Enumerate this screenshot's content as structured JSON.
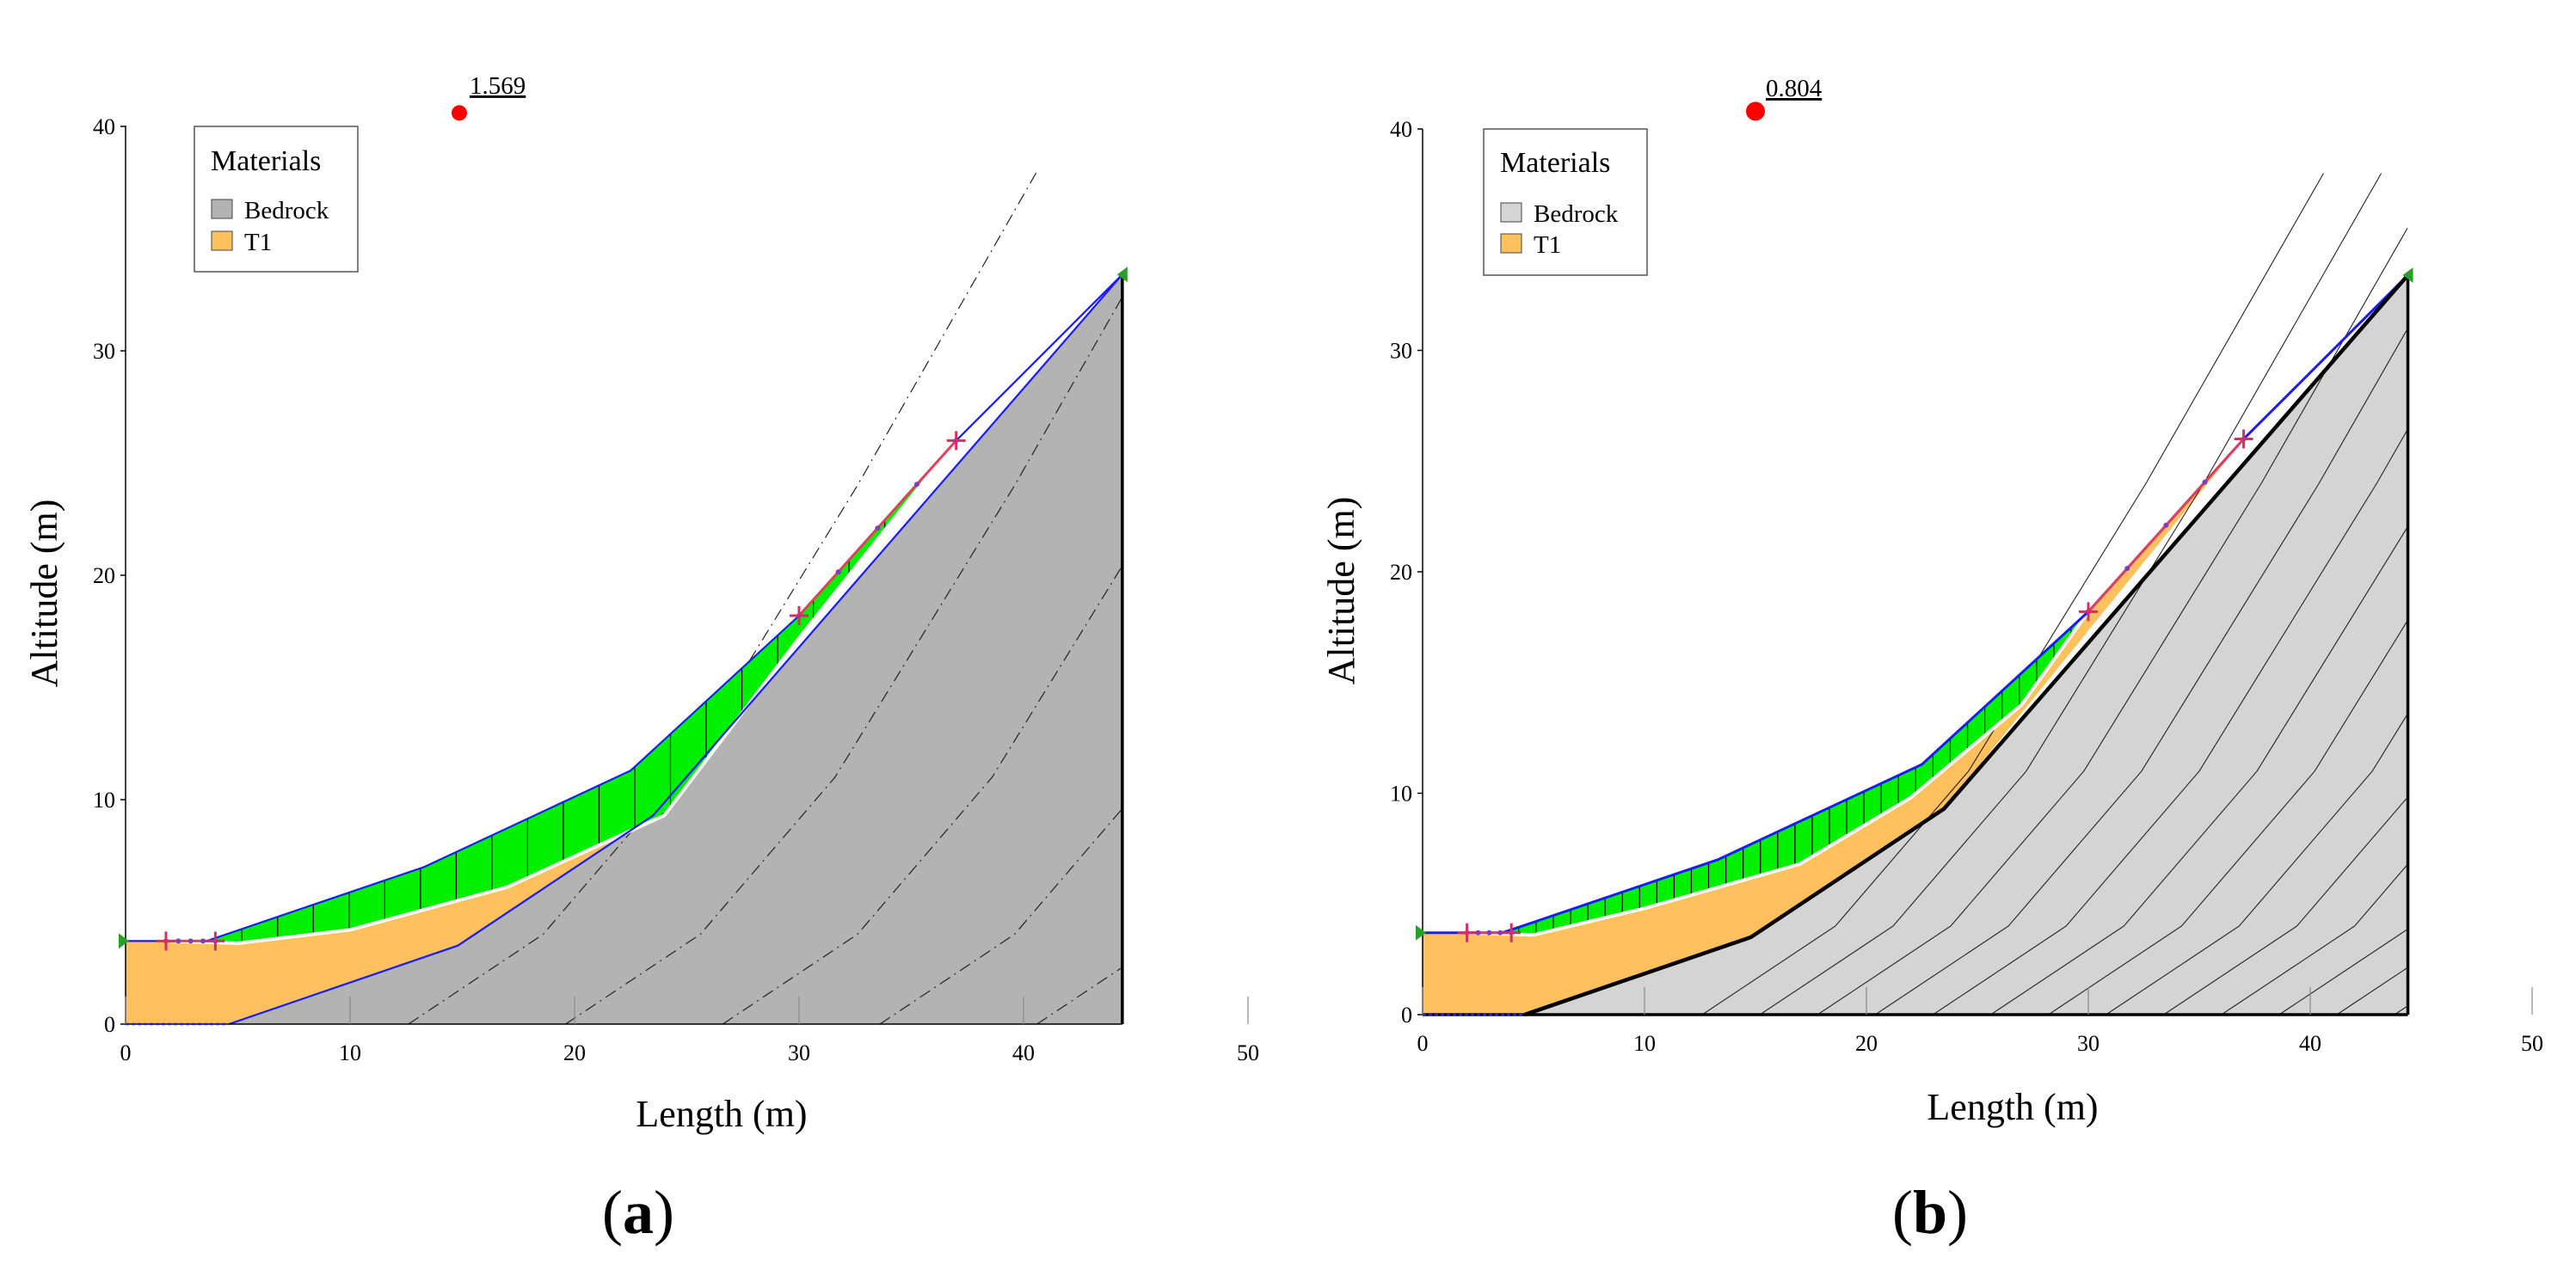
{
  "panels": [
    {
      "id": "a",
      "label_open": "(",
      "label_letter": "a",
      "label_close": ")",
      "factor_of_safety": "1.569",
      "legend": {
        "title": "Materials",
        "items": [
          {
            "label": "Bedrock",
            "color": "#b3b3b3"
          },
          {
            "label": "T1",
            "color": "#ffc05e"
          }
        ]
      }
    },
    {
      "id": "b",
      "label_open": "(",
      "label_letter": "b",
      "label_close": ")",
      "factor_of_safety": "0.804",
      "legend": {
        "title": "Materials",
        "items": [
          {
            "label": "Bedrock",
            "color": "#d4d4d4"
          },
          {
            "label": "T1",
            "color": "#ffc05e"
          }
        ]
      }
    }
  ],
  "chart_data": [
    {
      "type": "line",
      "panel": "a",
      "xlabel": "Length (m)",
      "ylabel": "Altitude (m)",
      "xlim": [
        0,
        50
      ],
      "ylim": [
        0,
        40
      ],
      "x_ticks": [
        0,
        10,
        20,
        30,
        40,
        50
      ],
      "y_ticks": [
        0,
        10,
        20,
        30,
        40
      ],
      "factor_of_safety_marker": {
        "x": 15,
        "y": 40.6,
        "value": "1.569"
      },
      "series": [
        {
          "name": "Bedrock",
          "fill": "#b3b3b3",
          "x": [
            4.6,
            14.8,
            23.5,
            44.4,
            44.4
          ],
          "y": [
            0,
            3.5,
            9.3,
            33.4,
            0
          ]
        },
        {
          "name": "T1",
          "fill": "#ffc05e",
          "x": [
            0,
            0,
            2,
            5,
            10,
            17,
            24,
            30,
            37,
            23.5,
            14.8,
            4.6
          ],
          "y": [
            0,
            3.7,
            3.7,
            3.6,
            4.2,
            6.1,
            9.3,
            17.2,
            26,
            9.3,
            3.5,
            0
          ]
        },
        {
          "x": [
            3.6,
            13.3,
            22.5,
            30,
            37
          ],
          "y": [
            3.7,
            7.0,
            11.3,
            18.2,
            26
          ]
        },
        {
          "x": [
            2,
            5,
            10,
            17,
            24,
            30,
            37
          ],
          "y": [
            3.7,
            3.6,
            4.2,
            6.1,
            9.3,
            17.2,
            26
          ]
        }
      ],
      "slip_surface_endpoints": [
        {
          "x": 1.8,
          "y": 3.7
        },
        {
          "x": 4.0,
          "y": 3.7
        },
        {
          "x": 30.0,
          "y": 18.2
        },
        {
          "x": 37.0,
          "y": 26.0
        }
      ]
    },
    {
      "type": "line",
      "panel": "b",
      "xlabel": "Length (m)",
      "ylabel": "Altitude (m)",
      "xlim": [
        0,
        50
      ],
      "ylim": [
        0,
        40
      ],
      "x_ticks": [
        0,
        10,
        20,
        30,
        40,
        50
      ],
      "y_ticks": [
        0,
        10,
        20,
        30,
        40
      ],
      "factor_of_safety_marker": {
        "x": 15,
        "y": 40.8,
        "value": "0.804"
      },
      "series": [
        {
          "name": "Bedrock",
          "fill": "#d4d4d4",
          "x": [
            4.6,
            14.8,
            23.5,
            44.4,
            44.4
          ],
          "y": [
            0,
            3.5,
            9.3,
            33.4,
            0
          ]
        },
        {
          "name": "T1",
          "fill": "#ffc05e",
          "x": [
            0,
            0,
            3.6,
            13.3,
            22.5,
            30,
            37,
            23.5,
            14.8,
            4.6
          ],
          "y": [
            0,
            3.7,
            3.7,
            7.0,
            11.3,
            18.2,
            26,
            9.3,
            3.5,
            0
          ]
        },
        {
          "x": [
            3.6,
            13.3,
            22.5,
            30,
            37
          ],
          "y": [
            3.7,
            7.0,
            11.3,
            18.2,
            26
          ]
        },
        {
          "x": [
            2,
            5,
            10,
            17,
            22,
            27,
            30
          ],
          "y": [
            3.7,
            3.6,
            4.8,
            6.8,
            9.8,
            14.0,
            18.2
          ]
        }
      ],
      "slip_surface_endpoints": [
        {
          "x": 2.0,
          "y": 3.7
        },
        {
          "x": 4.0,
          "y": 3.7
        },
        {
          "x": 30.0,
          "y": 18.2
        },
        {
          "x": 37.0,
          "y": 26.0
        }
      ]
    }
  ]
}
